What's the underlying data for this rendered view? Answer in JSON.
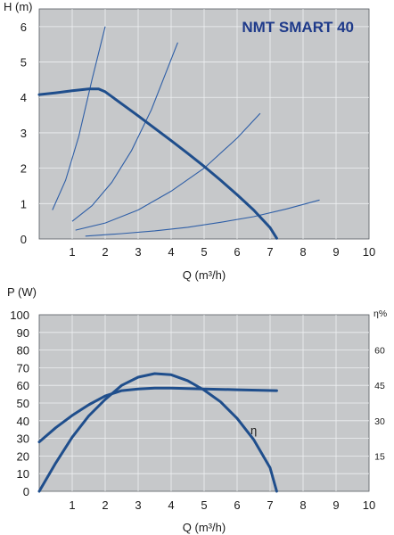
{
  "chart_data": [
    {
      "type": "line",
      "title": "NMT SMART 40",
      "xlabel": "Q (m³/h)",
      "ylabel": "H (m)",
      "xlim": [
        0,
        10
      ],
      "ylim": [
        0,
        6.5
      ],
      "xticks": [
        "1",
        "2",
        "3",
        "4",
        "5",
        "6",
        "7",
        "8",
        "9",
        "10"
      ],
      "yticks": [
        "0",
        "1",
        "2",
        "3",
        "4",
        "5",
        "6"
      ],
      "grid": true,
      "colors": {
        "background": "#c6c8ca",
        "grid": "#eef0f2",
        "curve": "#1f4e8c",
        "system_curves": "#2f5fa7",
        "title": "#1e3a8a"
      },
      "series": [
        {
          "role": "max-curve",
          "x": [
            0,
            0.5,
            1.0,
            1.5,
            1.8,
            2.0,
            2.5,
            3.0,
            3.5,
            4.0,
            4.5,
            5.0,
            5.5,
            6.0,
            6.5,
            7.0,
            7.2
          ],
          "y": [
            4.08,
            4.13,
            4.19,
            4.24,
            4.24,
            4.16,
            3.82,
            3.48,
            3.13,
            2.78,
            2.42,
            2.05,
            1.66,
            1.25,
            0.82,
            0.32,
            0.02
          ]
        },
        {
          "role": "system-curve",
          "x": [
            0.4,
            0.8,
            1.2,
            1.6,
            2.0
          ],
          "y": [
            0.82,
            1.66,
            2.9,
            4.5,
            6.0
          ]
        },
        {
          "role": "system-curve",
          "x": [
            1.0,
            1.6,
            2.2,
            2.8,
            3.4,
            4.2
          ],
          "y": [
            0.5,
            0.94,
            1.6,
            2.5,
            3.65,
            5.55
          ]
        },
        {
          "role": "system-curve",
          "x": [
            1.1,
            2.0,
            3.0,
            4.0,
            5.0,
            6.0,
            6.7
          ],
          "y": [
            0.25,
            0.45,
            0.82,
            1.35,
            2.0,
            2.85,
            3.55
          ]
        },
        {
          "role": "system-curve",
          "x": [
            1.4,
            2.5,
            3.5,
            4.5,
            5.5,
            6.5,
            7.5,
            8.5
          ],
          "y": [
            0.08,
            0.15,
            0.23,
            0.33,
            0.47,
            0.63,
            0.85,
            1.1
          ]
        }
      ]
    },
    {
      "type": "line",
      "xlabel": "Q (m³/h)",
      "ylabel": "P (W)",
      "y2label": "η%",
      "xlim": [
        0,
        10
      ],
      "ylim": [
        0,
        100
      ],
      "y2lim": [
        0,
        75
      ],
      "xticks": [
        "1",
        "2",
        "3",
        "4",
        "5",
        "6",
        "7",
        "8",
        "9",
        "10"
      ],
      "yticks": [
        "0",
        "10",
        "20",
        "30",
        "40",
        "50",
        "60",
        "70",
        "80",
        "90",
        "100"
      ],
      "y2ticks": [
        "15",
        "30",
        "45",
        "60"
      ],
      "grid": true,
      "annotation": "η",
      "series": [
        {
          "role": "power",
          "x": [
            0,
            0.5,
            1.0,
            1.5,
            2.0,
            2.5,
            3.0,
            3.5,
            4.0,
            5.0,
            6.0,
            7.2
          ],
          "y": [
            28,
            36,
            43,
            49,
            54,
            57,
            58,
            58.5,
            58.5,
            58,
            57.5,
            57
          ]
        },
        {
          "role": "efficiency",
          "x": [
            0,
            0.5,
            1.0,
            1.5,
            2.0,
            2.5,
            3.0,
            3.5,
            4.0,
            4.5,
            5.0,
            5.5,
            6.0,
            6.5,
            7.0,
            7.2
          ],
          "y": [
            0,
            12,
            23,
            32,
            39,
            45,
            48.5,
            50,
            49.5,
            47,
            43,
            38,
            31,
            22,
            10,
            0
          ]
        }
      ]
    }
  ]
}
